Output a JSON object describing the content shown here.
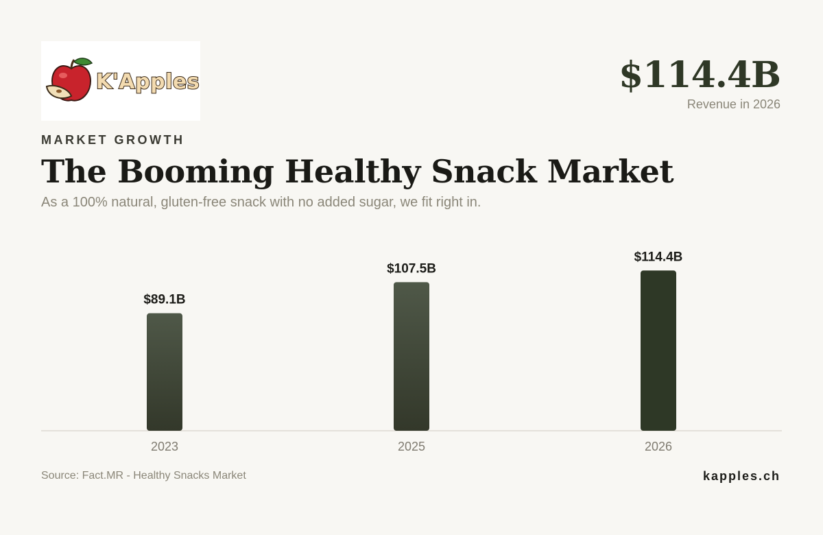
{
  "brand": {
    "logo_text": "K'Apples"
  },
  "headline": {
    "value": "$114.4B",
    "caption": "Revenue in 2026"
  },
  "eyebrow": "MARKET GROWTH",
  "title": "The Booming Healthy Snack Market",
  "subtitle": "As a 100% natural, gluten-free snack with no added sugar, we fit right in.",
  "chart_data": {
    "type": "bar",
    "title": "",
    "xlabel": "",
    "ylabel": "",
    "categories": [
      "2023",
      "2025",
      "2026"
    ],
    "values": [
      89.1,
      107.5,
      114.4
    ],
    "value_labels": [
      "$89.1B",
      "$107.5B",
      "$114.4B"
    ],
    "unit": "$B",
    "ylim": [
      0,
      130
    ],
    "grid": false,
    "legend": "none",
    "colors": {
      "bar": "#4f5848",
      "bar_dark": "#33382a",
      "highlight": "#2e3826"
    }
  },
  "footer": {
    "source": "Source: Fact.MR - Healthy Snacks Market",
    "site": "kapples.ch"
  }
}
